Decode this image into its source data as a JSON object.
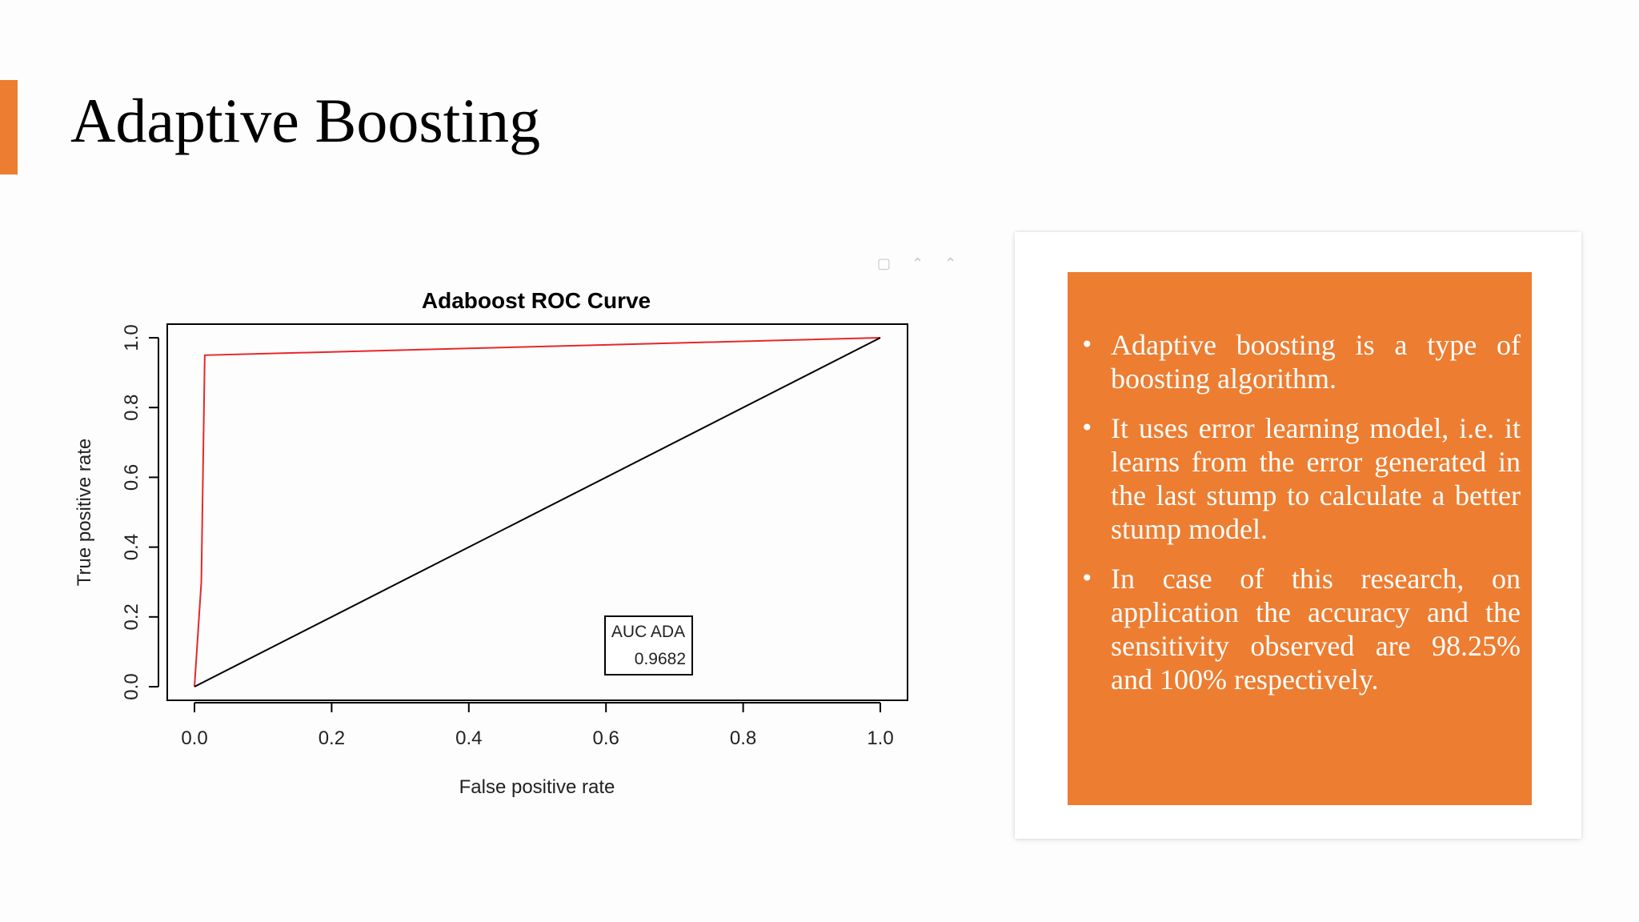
{
  "slide": {
    "title": "Adaptive Boosting",
    "accent_color": "#ed7d31"
  },
  "chart_data": {
    "type": "line",
    "title": "Adaboost ROC Curve",
    "xlabel": "False positive rate",
    "ylabel": "True positive rate",
    "xlim": [
      0,
      1
    ],
    "ylim": [
      0,
      1
    ],
    "x_ticks": [
      "0.0",
      "0.2",
      "0.4",
      "0.6",
      "0.8",
      "1.0"
    ],
    "y_ticks": [
      "0.0",
      "0.2",
      "0.4",
      "0.6",
      "0.8",
      "1.0"
    ],
    "grid": false,
    "series": [
      {
        "color": "#e8262a",
        "x": [
          0,
          0.01,
          0.015,
          1.0
        ],
        "y": [
          0,
          0.3,
          0.95,
          1.0
        ]
      },
      {
        "color": "#000000",
        "x": [
          0,
          1
        ],
        "y": [
          0,
          1
        ]
      }
    ],
    "legend": {
      "position": "bottom-right",
      "label": "AUC ADA",
      "value": "0.9682"
    }
  },
  "toolbar_icons": [
    "window-icon",
    "chevron-up-icon",
    "chevron-up-icon"
  ],
  "bullets": [
    "Adaptive boosting is a type of boosting algorithm.",
    "It uses error learning model, i.e. it learns from the error generated in the last stump to calculate a better stump model.",
    "In case of this research, on application the accuracy and the sensitivity observed are 98.25% and 100% respectively."
  ],
  "text_box_color": "#ed7d31"
}
